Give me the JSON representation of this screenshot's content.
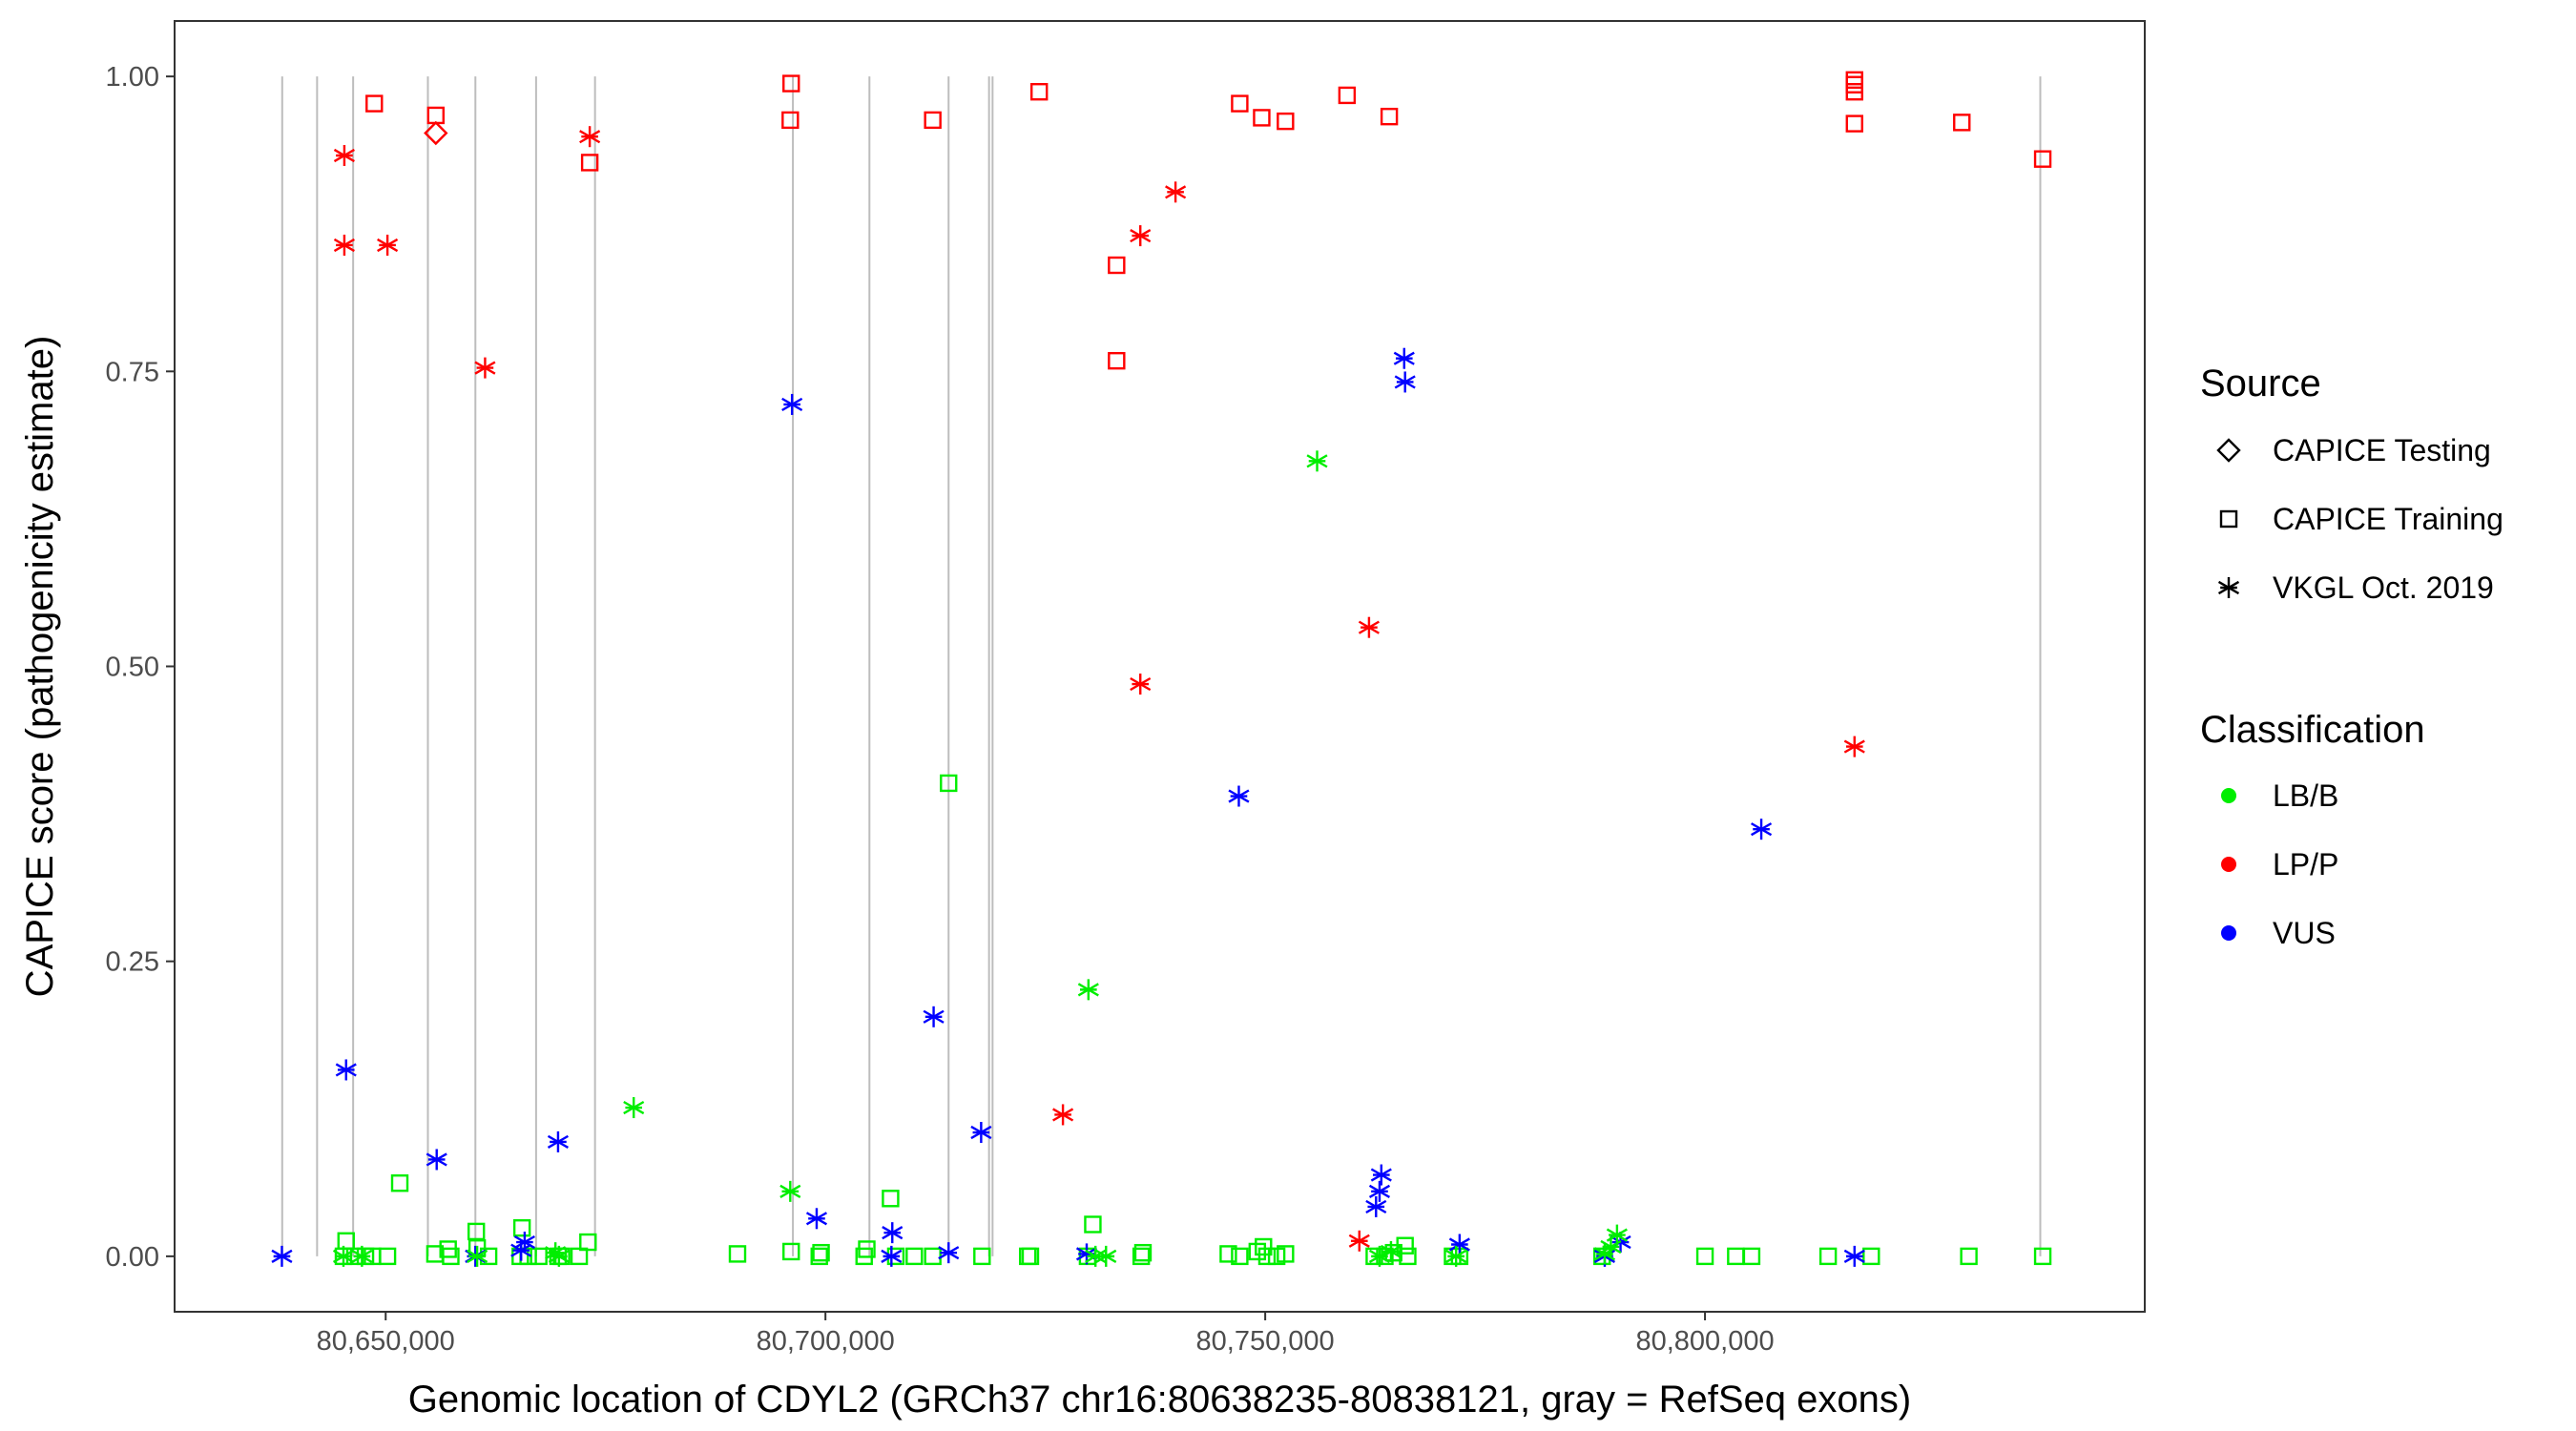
{
  "chart_data": {
    "type": "scatter",
    "xlabel": "Genomic location of CDYL2 (GRCh37 chr16:80638235-80838121, gray = RefSeq exons)",
    "ylabel": "CAPICE score (pathogenicity estimate)",
    "xlim": [
      80626000,
      80850000
    ],
    "ylim": [
      -0.047,
      1.047
    ],
    "x_ticks": [
      80650000,
      80700000,
      80750000,
      80800000
    ],
    "x_tick_labels": [
      "80,650,000",
      "80,700,000",
      "80,750,000",
      "80,800,000"
    ],
    "y_ticks": [
      0,
      0.25,
      0.5,
      0.75,
      1.0
    ],
    "y_tick_labels": [
      "0.00",
      "0.25",
      "0.50",
      "0.75",
      "1.00"
    ],
    "grid": false,
    "exons_gray": [
      80638235,
      80642200,
      80646300,
      80654800,
      80660200,
      80667100,
      80673800,
      80696300,
      80705000,
      80714000,
      80718600,
      80719000,
      80838121
    ],
    "legend": {
      "placement": "right",
      "source_title": "Source",
      "source_items": [
        {
          "label": "CAPICE Testing",
          "shape": "diamond"
        },
        {
          "label": "CAPICE Training",
          "shape": "square"
        },
        {
          "label": "VKGL Oct. 2019",
          "shape": "asterisk"
        }
      ],
      "class_title": "Classification",
      "class_items": [
        {
          "label": "LB/B",
          "color": "#00ee00"
        },
        {
          "label": "LP/P",
          "color": "#ff0000"
        },
        {
          "label": "VUS",
          "color": "#0000ff"
        }
      ]
    },
    "colors": {
      "LB/B": "#00ee00",
      "LP/P": "#ff0000",
      "VUS": "#0000ff",
      "exon": "#bdbdbd"
    },
    "series": [
      {
        "source": "CAPICE Testing",
        "classification": "LP/P",
        "points": [
          [
            80655700,
            0.952
          ]
        ]
      },
      {
        "source": "CAPICE Training",
        "classification": "LP/P",
        "points": [
          [
            80648700,
            0.977
          ],
          [
            80655700,
            0.967
          ],
          [
            80673200,
            0.927
          ],
          [
            80696100,
            0.994
          ],
          [
            80696000,
            0.963
          ],
          [
            80712200,
            0.963
          ],
          [
            80724300,
            0.987
          ],
          [
            80733100,
            0.84
          ],
          [
            80733100,
            0.759
          ],
          [
            80747100,
            0.977
          ],
          [
            80749600,
            0.965
          ],
          [
            80752300,
            0.962
          ],
          [
            80759300,
            0.984
          ],
          [
            80764100,
            0.966
          ],
          [
            80817000,
            0.997
          ],
          [
            80817000,
            0.993
          ],
          [
            80817000,
            0.987
          ],
          [
            80817000,
            0.96
          ],
          [
            80829200,
            0.961
          ],
          [
            80838400,
            0.93
          ]
        ]
      },
      {
        "source": "CAPICE Training",
        "classification": "LB/B",
        "points": [
          [
            80645500,
            0.013
          ],
          [
            80645200,
            0.0
          ],
          [
            80646500,
            0.0
          ],
          [
            80647700,
            0.0
          ],
          [
            80648500,
            0.0
          ],
          [
            80650200,
            0.0
          ],
          [
            80651600,
            0.062
          ],
          [
            80655600,
            0.002
          ],
          [
            80657100,
            0.006
          ],
          [
            80657400,
            0.0
          ],
          [
            80660300,
            0.021
          ],
          [
            80660400,
            0.007
          ],
          [
            80661700,
            0.0
          ],
          [
            80665300,
            0.0
          ],
          [
            80665500,
            0.024
          ],
          [
            80666200,
            0.0
          ],
          [
            80667400,
            0.0
          ],
          [
            80669600,
            0.0
          ],
          [
            80670000,
            0.0
          ],
          [
            80672000,
            0.0
          ],
          [
            80673000,
            0.012
          ],
          [
            80690000,
            0.002
          ],
          [
            80696100,
            0.004
          ],
          [
            80699300,
            0.0
          ],
          [
            80699500,
            0.003
          ],
          [
            80704400,
            0.0
          ],
          [
            80704700,
            0.006
          ],
          [
            80707400,
            0.049
          ],
          [
            80708000,
            0.0
          ],
          [
            80710100,
            0.0
          ],
          [
            80712200,
            0.0
          ],
          [
            80714000,
            0.401
          ],
          [
            80717800,
            0.0
          ],
          [
            80723000,
            0.0
          ],
          [
            80723300,
            0.0
          ],
          [
            80729800,
            0.0
          ],
          [
            80730400,
            0.027
          ],
          [
            80735900,
            0.0
          ],
          [
            80736100,
            0.003
          ],
          [
            80745800,
            0.002
          ],
          [
            80747100,
            0.0
          ],
          [
            80749100,
            0.004
          ],
          [
            80749800,
            0.008
          ],
          [
            80750200,
            0.0
          ],
          [
            80751300,
            0.0
          ],
          [
            80752300,
            0.002
          ],
          [
            80762400,
            0.0
          ],
          [
            80763600,
            0.0
          ],
          [
            80764600,
            0.003
          ],
          [
            80765900,
            0.009
          ],
          [
            80766200,
            0.0
          ],
          [
            80771300,
            0.0
          ],
          [
            80772100,
            0.0
          ],
          [
            80788300,
            0.0
          ],
          [
            80800000,
            0.0
          ],
          [
            80803500,
            0.0
          ],
          [
            80805300,
            0.0
          ],
          [
            80814000,
            0.0
          ],
          [
            80818900,
            0.0
          ],
          [
            80830000,
            0.0
          ],
          [
            80838400,
            0.0
          ]
        ]
      },
      {
        "source": "VKGL Oct. 2019",
        "classification": "LP/P",
        "points": [
          [
            80645300,
            0.933
          ],
          [
            80645300,
            0.857
          ],
          [
            80650200,
            0.857
          ],
          [
            80661300,
            0.753
          ],
          [
            80673200,
            0.949
          ],
          [
            80727000,
            0.12
          ],
          [
            80735800,
            0.865
          ],
          [
            80735800,
            0.485
          ],
          [
            80739800,
            0.902
          ],
          [
            80760700,
            0.013
          ],
          [
            80761800,
            0.533
          ],
          [
            80817000,
            0.432
          ]
        ]
      },
      {
        "source": "VKGL Oct. 2019",
        "classification": "VUS",
        "points": [
          [
            80638200,
            0.0
          ],
          [
            80645500,
            0.158
          ],
          [
            80655800,
            0.082
          ],
          [
            80660200,
            0.0
          ],
          [
            80665400,
            0.005
          ],
          [
            80665800,
            0.012
          ],
          [
            80669600,
            0.097
          ],
          [
            80696200,
            0.722
          ],
          [
            80699000,
            0.032
          ],
          [
            80707600,
            0.02
          ],
          [
            80707500,
            0.0
          ],
          [
            80712300,
            0.203
          ],
          [
            80714000,
            0.003
          ],
          [
            80717700,
            0.105
          ],
          [
            80729700,
            0.002
          ],
          [
            80747000,
            0.39
          ],
          [
            80762600,
            0.042
          ],
          [
            80763000,
            0.055
          ],
          [
            80763200,
            0.069
          ],
          [
            80765800,
            0.761
          ],
          [
            80765900,
            0.741
          ],
          [
            80772100,
            0.01
          ],
          [
            80788600,
            0.0
          ],
          [
            80790400,
            0.012
          ],
          [
            80806400,
            0.362
          ],
          [
            80817000,
            0.0
          ]
        ]
      },
      {
        "source": "VKGL Oct. 2019",
        "classification": "LB/B",
        "points": [
          [
            80645200,
            0.0
          ],
          [
            80647300,
            0.0
          ],
          [
            80660400,
            0.0
          ],
          [
            80669300,
            0.003
          ],
          [
            80669700,
            0.0
          ],
          [
            80678200,
            0.126
          ],
          [
            80696000,
            0.055
          ],
          [
            80729900,
            0.226
          ],
          [
            80730700,
            0.0
          ],
          [
            80731900,
            0.0
          ],
          [
            80755900,
            0.674
          ],
          [
            80763000,
            0.0
          ],
          [
            80764300,
            0.004
          ],
          [
            80771700,
            0.0
          ],
          [
            80788600,
            0.002
          ],
          [
            80790000,
            0.018
          ],
          [
            80789300,
            0.008
          ]
        ]
      }
    ]
  }
}
